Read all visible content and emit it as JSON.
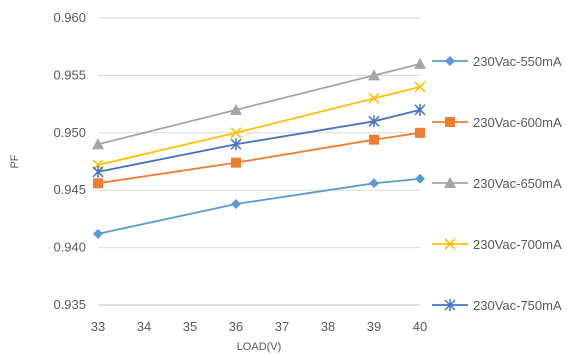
{
  "chart_data": {
    "type": "line",
    "xlabel": "LOAD(V)",
    "ylabel": "PF",
    "x": [
      33,
      36,
      39,
      40
    ],
    "x_ticks": [
      "33",
      "34",
      "35",
      "36",
      "37",
      "38",
      "39",
      "40"
    ],
    "y_ticks": [
      "0.935",
      "0.940",
      "0.945",
      "0.950",
      "0.955",
      "0.960"
    ],
    "xlim": [
      33,
      40
    ],
    "ylim": [
      0.935,
      0.96
    ],
    "grid": "horizontal",
    "legend_position": "right",
    "series": [
      {
        "name": "230Vac-550mA",
        "color": "#5b9bd5",
        "marker": "diamond",
        "values": [
          0.9412,
          0.9438,
          0.9456,
          0.946
        ]
      },
      {
        "name": "230Vac-600mA",
        "color": "#ed7d31",
        "marker": "square",
        "values": [
          0.9456,
          0.9474,
          0.9494,
          0.95
        ]
      },
      {
        "name": "230Vac-650mA",
        "color": "#a5a5a5",
        "marker": "triangle",
        "values": [
          0.949,
          0.952,
          0.955,
          0.956
        ]
      },
      {
        "name": "230Vac-700mA",
        "color": "#ffc000",
        "marker": "x",
        "values": [
          0.9472,
          0.95,
          0.953,
          0.954
        ]
      },
      {
        "name": "230Vac-750mA",
        "color": "#4472c4",
        "marker": "star",
        "values": [
          0.9466,
          0.949,
          0.951,
          0.952
        ]
      }
    ]
  }
}
